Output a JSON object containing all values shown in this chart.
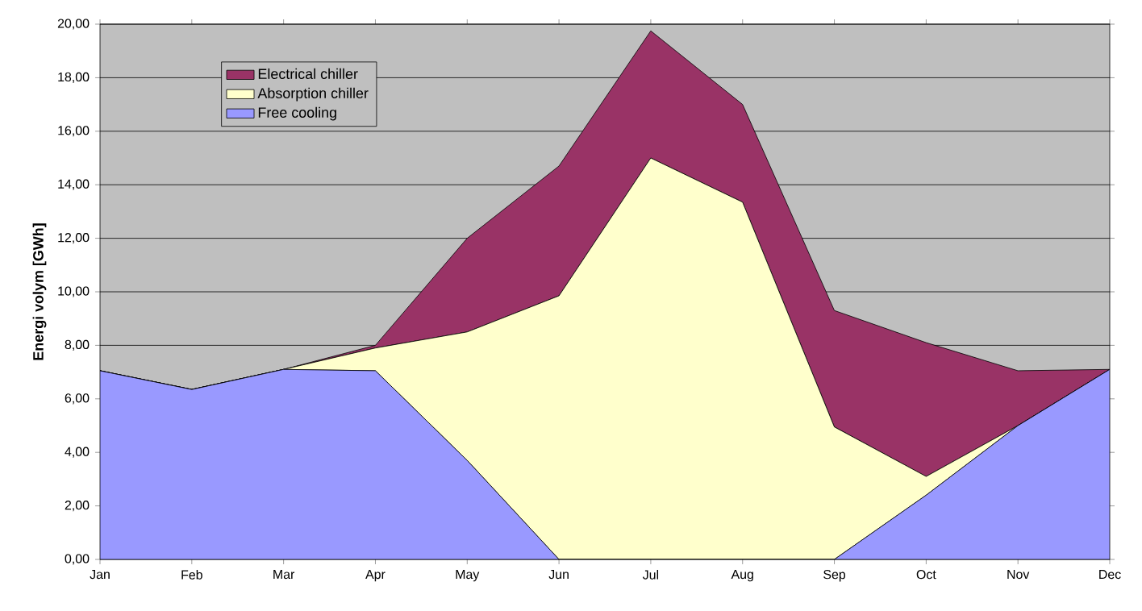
{
  "chart_data": {
    "type": "area",
    "stacked": true,
    "ylabel": "Energi volym [GWh]",
    "categories": [
      "Jan",
      "Feb",
      "Mar",
      "Apr",
      "May",
      "Jun",
      "Jul",
      "Aug",
      "Sep",
      "Oct",
      "Nov",
      "Dec"
    ],
    "series": [
      {
        "name": "Free cooling",
        "color": "#9999ff",
        "values": [
          7.05,
          6.35,
          7.1,
          7.05,
          3.7,
          0,
          0,
          0,
          0,
          2.4,
          5.0,
          7.1
        ]
      },
      {
        "name": "Absorption chiller",
        "color": "#ffffcc",
        "values": [
          0,
          0,
          0,
          0.85,
          4.8,
          9.85,
          15.0,
          13.35,
          4.95,
          0.7,
          0,
          0
        ]
      },
      {
        "name": "Electrical chiller",
        "color": "#993366",
        "values": [
          0,
          0,
          0,
          0.1,
          3.5,
          4.85,
          4.75,
          3.65,
          4.35,
          5.0,
          2.05,
          0
        ]
      }
    ],
    "ylim": [
      0,
      20
    ],
    "yticks": [
      {
        "value": 0,
        "label": "0,00"
      },
      {
        "value": 2,
        "label": "2,00"
      },
      {
        "value": 4,
        "label": "4,00"
      },
      {
        "value": 6,
        "label": "6,00"
      },
      {
        "value": 8,
        "label": "8,00"
      },
      {
        "value": 10,
        "label": "10,00"
      },
      {
        "value": 12,
        "label": "12,00"
      },
      {
        "value": 14,
        "label": "14,00"
      },
      {
        "value": 16,
        "label": "16,00"
      },
      {
        "value": 18,
        "label": "18,00"
      },
      {
        "value": 20,
        "label": "20,00"
      }
    ],
    "grid": "y",
    "legend": "top left",
    "marker": "none",
    "line_style": "solid"
  }
}
